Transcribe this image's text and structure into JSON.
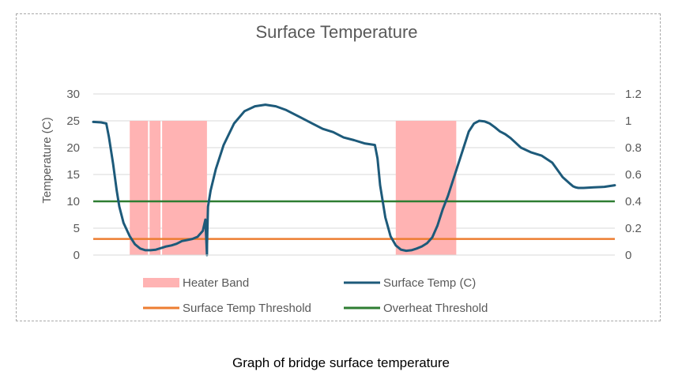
{
  "caption": "Graph of bridge surface temperature",
  "chart_data": {
    "type": "line",
    "title": "Surface Temperature",
    "ylabel": "Temperature (C)",
    "xlabel": "",
    "ylim": [
      0,
      30
    ],
    "y_ticks": [
      "0",
      "5",
      "10",
      "15",
      "20",
      "25",
      "30"
    ],
    "y2lim": [
      0,
      1.2
    ],
    "y2_ticks": [
      "0",
      "0.2",
      "0.4",
      "0.6",
      "0.8",
      "1",
      "1.2"
    ],
    "x_range": [
      0,
      100
    ],
    "grid": true,
    "legend": [
      {
        "label": "Heater Band",
        "key": "band"
      },
      {
        "label": "Surface Temp (C)",
        "key": "temp"
      },
      {
        "label": "Surface Temp Threshold",
        "key": "thresh"
      },
      {
        "label": "Overheat Threshold",
        "key": "over"
      }
    ],
    "colors": {
      "heater_band": "#ffb3b3",
      "surface_temp": "#1d5a7a",
      "surface_threshold": "#ed7d31",
      "overheat_threshold": "#2e7d32"
    },
    "heater_band": {
      "axis": "secondary",
      "value": 1,
      "intervals": [
        [
          7,
          10.5
        ],
        [
          10.8,
          12.9
        ],
        [
          13.2,
          21.8
        ],
        [
          58,
          69.6
        ]
      ]
    },
    "surface_temp_threshold": 3,
    "overheat_threshold": 10,
    "surface_temp": {
      "name": "Surface Temp (C)",
      "x": [
        0,
        1.5,
        2.5,
        3,
        3.8,
        4.5,
        5,
        5.8,
        7,
        8,
        9,
        10,
        11,
        12,
        13,
        14,
        15,
        16,
        17,
        18,
        19,
        20,
        21,
        21.5,
        21.8,
        21.82,
        22,
        22.5,
        23.5,
        25,
        27,
        29,
        31,
        33,
        35,
        37,
        38,
        40,
        42,
        44,
        46,
        48,
        50,
        52,
        54,
        54.5,
        55,
        56,
        57,
        58,
        59,
        60,
        61,
        62,
        63,
        64,
        65,
        66,
        67,
        68,
        69,
        70,
        71,
        72,
        73,
        74,
        75,
        76,
        77,
        78,
        79,
        80,
        82,
        84,
        86,
        88,
        90,
        91.5,
        92,
        92.5,
        93,
        94,
        96,
        98,
        100
      ],
      "y": [
        24.8,
        24.7,
        24.5,
        22,
        17,
        12,
        9,
        6,
        3.5,
        2,
        1.2,
        0.9,
        0.9,
        1.0,
        1.3,
        1.6,
        1.8,
        2.1,
        2.6,
        2.8,
        3.0,
        3.4,
        4.5,
        6.6,
        0,
        2,
        9,
        12,
        16,
        20.5,
        24.5,
        26.8,
        27.7,
        28,
        27.7,
        27,
        26.5,
        25.5,
        24.5,
        23.5,
        22.9,
        21.9,
        21.4,
        20.8,
        20.5,
        18,
        13,
        7,
        3.5,
        1.8,
        1.0,
        0.8,
        0.9,
        1.2,
        1.6,
        2.2,
        3.3,
        5.5,
        8.5,
        11,
        14,
        17,
        20,
        23,
        24.5,
        25,
        24.9,
        24.5,
        23.8,
        23,
        22.5,
        21.8,
        20,
        19.1,
        18.5,
        17.2,
        14.5,
        13.2,
        12.8,
        12.6,
        12.5,
        12.5,
        12.6,
        12.7,
        13
      ]
    }
  }
}
